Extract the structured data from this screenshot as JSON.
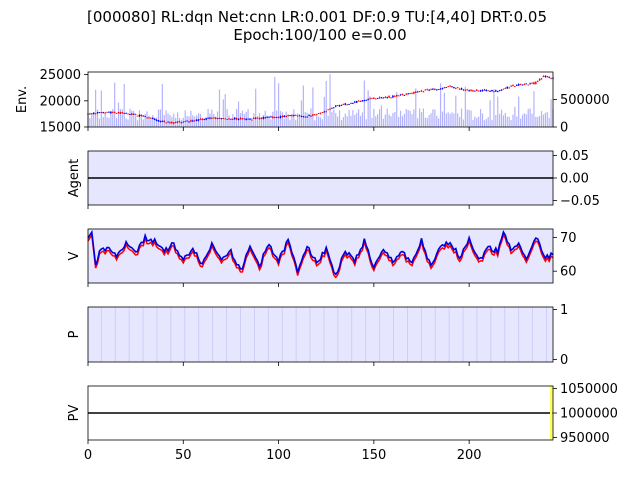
{
  "figure": {
    "title_line1": "[000080] RL:dqn Net:cnn LR:0.001 DF:0.9 TU:[4,40] DRT:0.05",
    "title_line2": "Epoch:100/100 e=0.00"
  },
  "colors": {
    "up": "#ff0000",
    "down": "#0000ff",
    "volume": "#b3b3ff",
    "panel_bg": "#e6e6ff",
    "grid_line": "#c8c8f5",
    "value_red": "#ff0000",
    "value_blue": "#0000dd",
    "marker_yellow": "#ffff55"
  },
  "chart_data": [
    {
      "type": "candlestick",
      "ylabel": "Env.",
      "ylim": [
        15000,
        25500
      ],
      "yticks": [
        15000,
        20000,
        25000
      ],
      "ytick_labels": [
        "15000",
        "20000",
        "25000"
      ],
      "volume_ylim": [
        0,
        1000000
      ],
      "volume_yticks": [
        0,
        500000
      ],
      "volume_ytick_labels": [
        "0",
        "500000"
      ],
      "xlim": [
        0,
        244
      ],
      "series": [
        {
          "key": "price",
          "points": [
            [
              0,
              17500
            ],
            [
              10,
              17800
            ],
            [
              20,
              17600
            ],
            [
              30,
              17000
            ],
            [
              38,
              16100
            ],
            [
              45,
              15800
            ],
            [
              55,
              16200
            ],
            [
              65,
              16700
            ],
            [
              75,
              16600
            ],
            [
              85,
              16500
            ],
            [
              95,
              16800
            ],
            [
              100,
              16900
            ],
            [
              108,
              17200
            ],
            [
              115,
              17000
            ],
            [
              120,
              17400
            ],
            [
              125,
              18000
            ],
            [
              130,
              19000
            ],
            [
              140,
              19700
            ],
            [
              150,
              20500
            ],
            [
              160,
              20800
            ],
            [
              170,
              21500
            ],
            [
              180,
              22200
            ],
            [
              185,
              22300
            ],
            [
              190,
              22800
            ],
            [
              200,
              21900
            ],
            [
              210,
              22000
            ],
            [
              215,
              21800
            ],
            [
              222,
              22800
            ],
            [
              230,
              23200
            ],
            [
              235,
              23400
            ],
            [
              239,
              24700
            ],
            [
              244,
              24300
            ]
          ]
        }
      ]
    },
    {
      "type": "line",
      "ylabel": "Agent",
      "ylim": [
        -0.06,
        0.06
      ],
      "yticks": [
        -0.05,
        0,
        0.05
      ],
      "ytick_labels": [
        "−0.05",
        "0.00",
        "0.05"
      ],
      "xlim": [
        0,
        244
      ],
      "series": [
        {
          "values_constant": 0
        }
      ]
    },
    {
      "type": "line",
      "ylabel": "V",
      "ylim": [
        56.5,
        72.5
      ],
      "yticks": [
        60,
        70
      ],
      "ytick_labels": [
        "60",
        "70"
      ],
      "xlim": [
        0,
        244
      ],
      "series": [
        {
          "key": "v_red"
        },
        {
          "key": "v_blue",
          "points": [
            [
              0,
              70.5
            ],
            [
              2,
              72
            ],
            [
              4,
              62
            ],
            [
              6,
              66
            ],
            [
              10,
              67
            ],
            [
              15,
              65
            ],
            [
              20,
              68
            ],
            [
              26,
              66
            ],
            [
              30,
              70
            ],
            [
              35,
              69
            ],
            [
              40,
              66
            ],
            [
              45,
              68
            ],
            [
              50,
              63
            ],
            [
              55,
              67
            ],
            [
              60,
              62
            ],
            [
              65,
              68
            ],
            [
              70,
              64
            ],
            [
              75,
              66
            ],
            [
              80,
              60
            ],
            [
              85,
              67
            ],
            [
              90,
              62
            ],
            [
              95,
              68
            ],
            [
              100,
              63
            ],
            [
              105,
              69
            ],
            [
              110,
              60
            ],
            [
              115,
              68
            ],
            [
              120,
              62
            ],
            [
              125,
              67
            ],
            [
              130,
              58.5
            ],
            [
              135,
              66
            ],
            [
              140,
              63
            ],
            [
              145,
              69
            ],
            [
              150,
              61
            ],
            [
              155,
              66
            ],
            [
              160,
              63
            ],
            [
              165,
              66
            ],
            [
              170,
              62
            ],
            [
              175,
              69
            ],
            [
              180,
              61
            ],
            [
              185,
              67
            ],
            [
              190,
              69
            ],
            [
              195,
              64
            ],
            [
              200,
              70
            ],
            [
              205,
              63
            ],
            [
              210,
              67
            ],
            [
              215,
              66
            ],
            [
              218,
              72
            ],
            [
              222,
              66
            ],
            [
              226,
              69
            ],
            [
              230,
              63
            ],
            [
              235,
              70
            ],
            [
              240,
              64
            ],
            [
              244,
              65
            ]
          ]
        }
      ]
    },
    {
      "type": "area",
      "ylabel": "P",
      "ylim": [
        -0.05,
        1.05
      ],
      "yticks": [
        0,
        1
      ],
      "ytick_labels": [
        "0",
        "1"
      ],
      "xlim": [
        0,
        244
      ]
    },
    {
      "type": "line",
      "ylabel": "PV",
      "ylim": [
        945000,
        1055000
      ],
      "yticks": [
        950000,
        1000000,
        1050000
      ],
      "ytick_labels": [
        "950000",
        "1000000",
        "1050000"
      ],
      "xlim": [
        0,
        244
      ],
      "xticks": [
        0,
        50,
        100,
        150,
        200
      ],
      "xtick_labels": [
        "0",
        "50",
        "100",
        "150",
        "200"
      ],
      "series": [
        {
          "values_constant": 1000000
        }
      ]
    }
  ]
}
